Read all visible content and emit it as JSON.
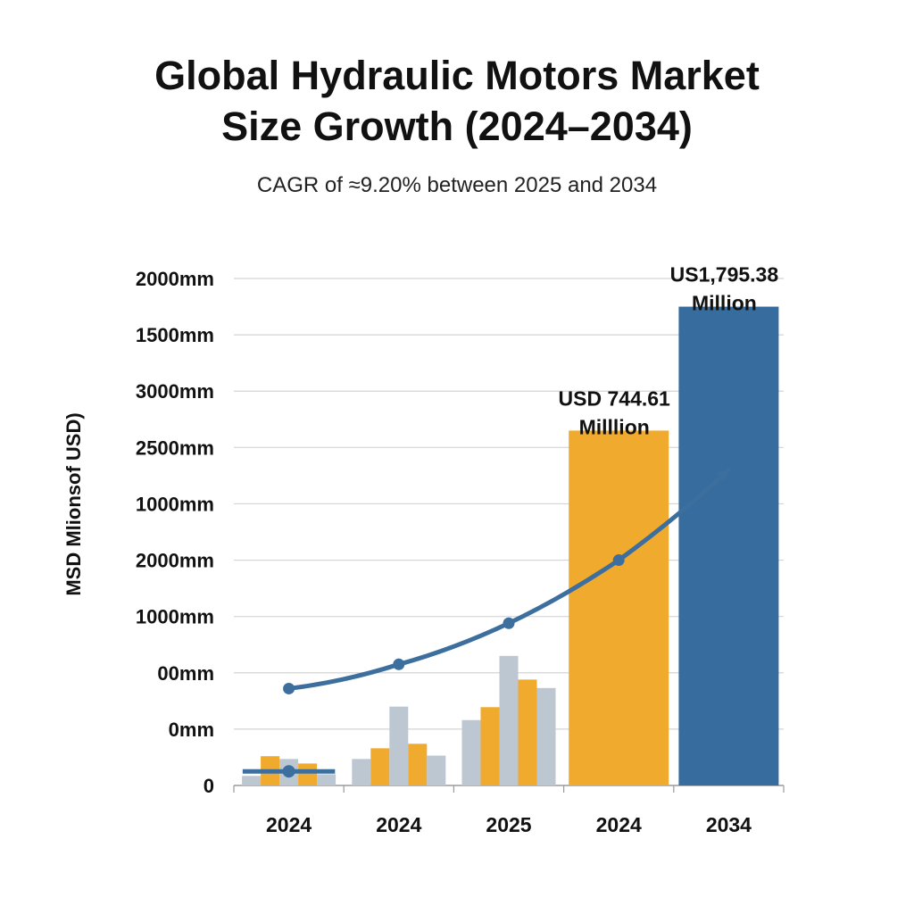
{
  "chart_data": {
    "type": "bar",
    "title_lines": [
      "Global Hydraulic Motors Market",
      "Size Growth (2024–2034)"
    ],
    "subtitle": "CAGR of ≈9.20% between 2025 and 2034",
    "ylabel": "MSD Mlionsof USD)",
    "xlabel": "",
    "y_tick_labels": [
      "0",
      "0mm",
      "00mm",
      "1000mm",
      "2000mm",
      "1000mm",
      "2500mm",
      "3000mm",
      "1500mm",
      "2000mm"
    ],
    "ylim": [
      0,
      9
    ],
    "grid": true,
    "categories": [
      "2024",
      "2024",
      "2025",
      "2024",
      "2034"
    ],
    "colors": {
      "orange": "#F0AA2E",
      "gray": "#BCC7D2",
      "blue": "#376C9E",
      "line": "#3C6E9E"
    },
    "small_bars": [
      {
        "group": 0,
        "series": [
          {
            "color": "gray",
            "value": 0.17
          },
          {
            "color": "orange",
            "value": 0.52
          },
          {
            "color": "gray",
            "value": 0.47
          },
          {
            "color": "orange",
            "value": 0.39
          },
          {
            "color": "gray",
            "value": 0.2
          }
        ]
      },
      {
        "group": 1,
        "series": [
          {
            "color": "gray",
            "value": 0.47
          },
          {
            "color": "orange",
            "value": 0.66
          },
          {
            "color": "gray",
            "value": 1.4
          },
          {
            "color": "orange",
            "value": 0.74
          },
          {
            "color": "gray",
            "value": 0.53
          }
        ]
      },
      {
        "group": 2,
        "series": [
          {
            "color": "gray",
            "value": 1.16
          },
          {
            "color": "orange",
            "value": 1.39
          },
          {
            "color": "gray",
            "value": 2.3
          },
          {
            "color": "orange",
            "value": 1.88
          },
          {
            "color": "gray",
            "value": 1.73
          }
        ]
      }
    ],
    "big_bars": [
      {
        "group": 3,
        "color": "orange",
        "value": 6.3,
        "label_lines": [
          "USD 744.61",
          "Milllion"
        ]
      },
      {
        "group": 4,
        "color": "blue",
        "value": 8.5,
        "label_lines": [
          "US1,795.38",
          "Million"
        ]
      }
    ],
    "trend_line": [
      {
        "x": 0,
        "y": 1.72
      },
      {
        "x": 1,
        "y": 2.15
      },
      {
        "x": 2,
        "y": 2.88
      },
      {
        "x": 3,
        "y": 4.0
      },
      {
        "x": 4,
        "y": 5.6
      }
    ],
    "trend_base_segment": {
      "x_from": -0.42,
      "x_to": 0.42,
      "y": 0.25,
      "marker_y": 0.25
    }
  }
}
